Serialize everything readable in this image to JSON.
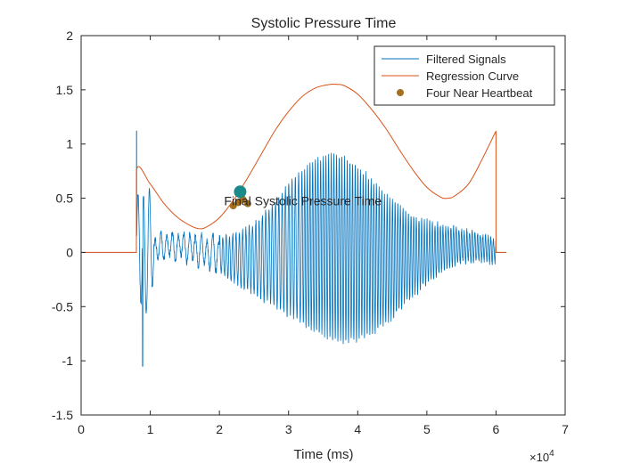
{
  "chart_data": {
    "type": "line",
    "title": "Systolic Pressure Time",
    "xlabel": "Time (ms)",
    "ylabel": "",
    "x_exponent_label": "×10",
    "x_exponent_power": "4",
    "xlim": [
      0,
      70000
    ],
    "ylim": [
      -1.5,
      2
    ],
    "xticks": [
      0,
      10000,
      20000,
      30000,
      40000,
      50000,
      60000,
      70000
    ],
    "xtick_labels": [
      "0",
      "1",
      "2",
      "3",
      "4",
      "5",
      "6",
      "7"
    ],
    "yticks": [
      -1.5,
      -1,
      -0.5,
      0,
      0.5,
      1,
      1.5,
      2
    ],
    "ytick_labels": [
      "-1.5",
      "-1",
      "-0.5",
      "0",
      "0.5",
      "1",
      "1.5",
      "2"
    ],
    "grid": false,
    "legend": {
      "location": "top-right",
      "entries": [
        "Filtered Signals",
        "Regression Curve",
        "Four Near Heartbeat"
      ]
    },
    "colors": {
      "filtered": "#0072bd",
      "regression": "#d95319",
      "near_heartbeat": "#a2701f",
      "final_point": "#1a8a8a"
    },
    "series": [
      {
        "name": "Filtered Signals",
        "style": "line",
        "segments": [
          {
            "x": [
              0,
              8000
            ],
            "y": [
              0,
              0
            ]
          },
          {
            "x": [
              60000,
              61500
            ],
            "y": [
              0,
              0
            ]
          }
        ],
        "oscillation": {
          "start": 8000,
          "end": 60000,
          "note": "dense oscillatory trace; extrema read from plot",
          "peak_max": 1.12,
          "trough_min": -1.05
        }
      },
      {
        "name": "Regression Curve",
        "style": "line",
        "x": [
          0,
          7990,
          8000,
          10000,
          12000,
          14000,
          16000,
          17000,
          18000,
          20000,
          22000,
          24000,
          26000,
          28000,
          30000,
          32000,
          34000,
          36000,
          37000,
          38000,
          40000,
          42000,
          44000,
          46000,
          48000,
          50000,
          52000,
          53000,
          54000,
          56000,
          58000,
          59990,
          60000,
          61500
        ],
        "y": [
          0,
          0,
          0.76,
          0.63,
          0.45,
          0.32,
          0.24,
          0.22,
          0.23,
          0.32,
          0.48,
          0.68,
          0.9,
          1.12,
          1.3,
          1.44,
          1.52,
          1.55,
          1.55,
          1.54,
          1.46,
          1.32,
          1.15,
          0.95,
          0.76,
          0.6,
          0.51,
          0.5,
          0.52,
          0.63,
          0.86,
          1.12,
          0,
          0
        ]
      },
      {
        "name": "Four Near Heartbeat",
        "style": "scatter",
        "x": [
          22000,
          22700,
          23400,
          24100
        ],
        "y": [
          0.43,
          0.46,
          0.49,
          0.45
        ]
      }
    ],
    "final_point": {
      "x": 23000,
      "y": 0.56,
      "label": "Final Systolic Pressure Time"
    }
  }
}
